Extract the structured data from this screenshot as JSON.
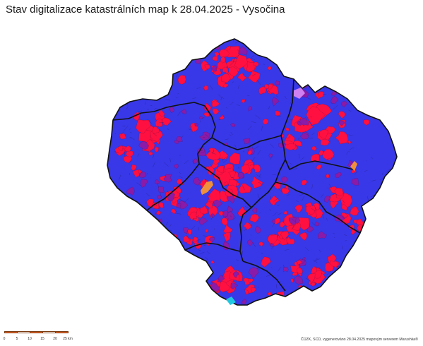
{
  "title": "Stav digitalizace katastrálních map k 28.04.2025 - Vysočina",
  "colors": {
    "digitized": "#3838e8",
    "analog": "#ff1040",
    "in_progress": "#8a1aa8",
    "special_orange": "#f0903a",
    "special_cyan": "#20c8e0",
    "special_violet": "#d080f0",
    "district_border": "#111111"
  },
  "scale": {
    "labels": [
      "0",
      "5",
      "10",
      "15",
      "20",
      "25 km"
    ],
    "fill_colors": [
      "#e8642a",
      "#ffffff",
      "#e8642a",
      "#ffffff",
      "#e8642a"
    ]
  },
  "credit": "ČÚZK, SCD, vygenerováno 28.04.2025 mapovým serverem Marushka®"
}
